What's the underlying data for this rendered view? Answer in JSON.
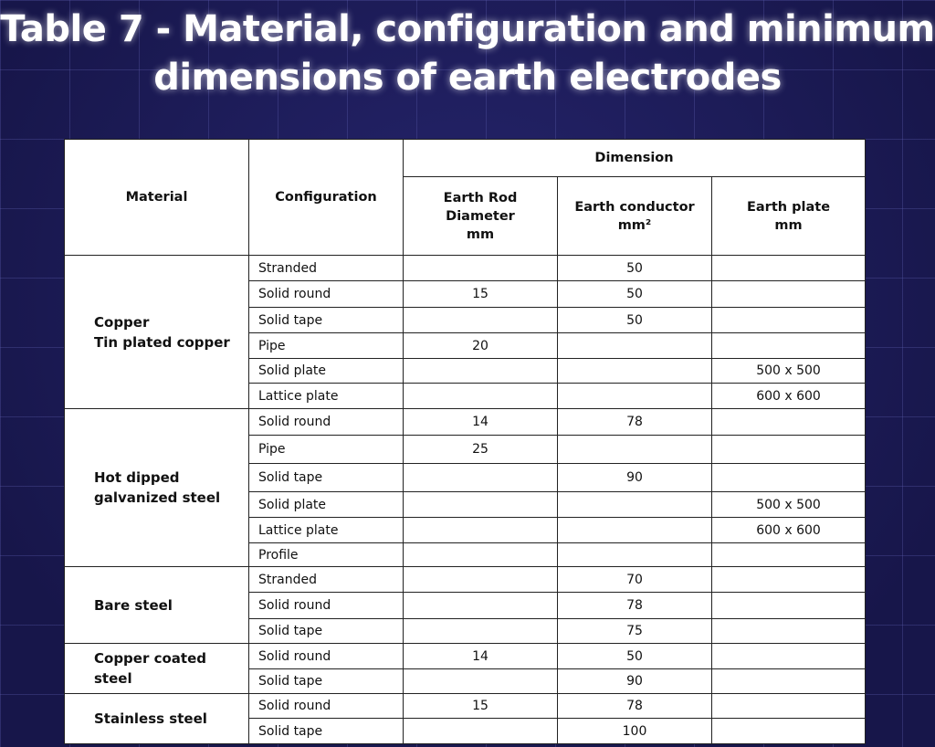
{
  "title": {
    "line1": "Table 7 - Material, configuration and minimum",
    "line2": "dimensions of earth electrodes"
  },
  "header": {
    "material": "Material",
    "configuration": "Configuration",
    "dimension": "Dimension",
    "rod": [
      "Earth Rod",
      "Diameter",
      "mm"
    ],
    "conductor": [
      "Earth conductor",
      "mm²"
    ],
    "plate": [
      "Earth plate",
      "mm"
    ]
  },
  "groups": [
    {
      "material": [
        "Copper",
        "Tin plated copper"
      ],
      "rows": [
        {
          "config": "Stranded",
          "rod": "",
          "conductor": "50",
          "plate": ""
        },
        {
          "config": "Solid round",
          "rod": "15",
          "conductor": "50",
          "plate": ""
        },
        {
          "config": "Solid tape",
          "rod": "",
          "conductor": "50",
          "plate": ""
        },
        {
          "config": "Pipe",
          "rod": "20",
          "conductor": "",
          "plate": ""
        },
        {
          "config": "Solid plate",
          "rod": "",
          "conductor": "",
          "plate": "500 x 500"
        },
        {
          "config": "Lattice plate",
          "rod": "",
          "conductor": "",
          "plate": "600 x 600"
        }
      ]
    },
    {
      "material": [
        "Hot dipped",
        "galvanized steel"
      ],
      "rows": [
        {
          "config": "Solid round",
          "rod": "14",
          "conductor": "78",
          "plate": ""
        },
        {
          "config": "Pipe",
          "rod": "25",
          "conductor": "",
          "plate": ""
        },
        {
          "config": "Solid tape",
          "rod": "",
          "conductor": "90",
          "plate": ""
        },
        {
          "config": "Solid plate",
          "rod": "",
          "conductor": "",
          "plate": "500 x 500"
        },
        {
          "config": "Lattice plate",
          "rod": "",
          "conductor": "",
          "plate": "600 x 600"
        },
        {
          "config": "Profile",
          "rod": "",
          "conductor": "",
          "plate": ""
        }
      ]
    },
    {
      "material": [
        "Bare steel"
      ],
      "rows": [
        {
          "config": "Stranded",
          "rod": "",
          "conductor": "70",
          "plate": ""
        },
        {
          "config": "Solid round",
          "rod": "",
          "conductor": "78",
          "plate": ""
        },
        {
          "config": "Solid tape",
          "rod": "",
          "conductor": "75",
          "plate": ""
        }
      ]
    },
    {
      "material": [
        "Copper coated",
        "steel"
      ],
      "rows": [
        {
          "config": "Solid round",
          "rod": "14",
          "conductor": "50",
          "plate": ""
        },
        {
          "config": "Solid tape",
          "rod": "",
          "conductor": "90",
          "plate": ""
        }
      ]
    },
    {
      "material": [
        "Stainless steel"
      ],
      "rows": [
        {
          "config": "Solid round",
          "rod": "15",
          "conductor": "78",
          "plate": ""
        },
        {
          "config": "Solid tape",
          "rod": "",
          "conductor": "100",
          "plate": ""
        }
      ]
    }
  ]
}
